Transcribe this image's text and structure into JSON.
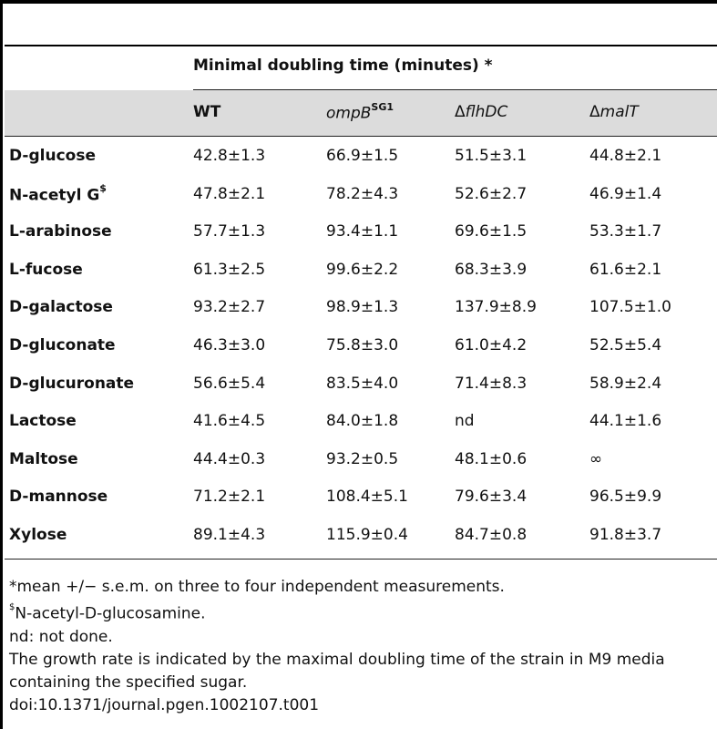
{
  "table": {
    "group_header": "Minimal doubling time (minutes) *",
    "columns": {
      "wt": "WT",
      "ompb_base": "ompB",
      "ompb_sup": "SG1",
      "flhdc_delta": "Δ",
      "flhdc_name": "flhDC",
      "malt_delta": "Δ",
      "malt_name": "malT"
    },
    "rows": [
      {
        "label": "D-glucose",
        "sup": "",
        "wt": "42.8±1.3",
        "ompb": "66.9±1.5",
        "flhdc": "51.5±3.1",
        "malt": "44.8±2.1"
      },
      {
        "label": "N-acetyl G",
        "sup": "$",
        "wt": "47.8±2.1",
        "ompb": "78.2±4.3",
        "flhdc": "52.6±2.7",
        "malt": "46.9±1.4"
      },
      {
        "label": "L-arabinose",
        "sup": "",
        "wt": "57.7±1.3",
        "ompb": "93.4±1.1",
        "flhdc": "69.6±1.5",
        "malt": "53.3±1.7"
      },
      {
        "label": "L-fucose",
        "sup": "",
        "wt": "61.3±2.5",
        "ompb": "99.6±2.2",
        "flhdc": "68.3±3.9",
        "malt": "61.6±2.1"
      },
      {
        "label": "D-galactose",
        "sup": "",
        "wt": "93.2±2.7",
        "ompb": "98.9±1.3",
        "flhdc": "137.9±8.9",
        "malt": "107.5±1.0"
      },
      {
        "label": "D-gluconate",
        "sup": "",
        "wt": "46.3±3.0",
        "ompb": "75.8±3.0",
        "flhdc": "61.0±4.2",
        "malt": "52.5±5.4"
      },
      {
        "label": "D-glucuronate",
        "sup": "",
        "wt": "56.6±5.4",
        "ompb": "83.5±4.0",
        "flhdc": "71.4±8.3",
        "malt": "58.9±2.4"
      },
      {
        "label": "Lactose",
        "sup": "",
        "wt": "41.6±4.5",
        "ompb": "84.0±1.8",
        "flhdc": "nd",
        "malt": "44.1±1.6"
      },
      {
        "label": "Maltose",
        "sup": "",
        "wt": "44.4±0.3",
        "ompb": "93.2±0.5",
        "flhdc": "48.1±0.6",
        "malt": "∞"
      },
      {
        "label": "D-mannose",
        "sup": "",
        "wt": "71.2±2.1",
        "ompb": "108.4±5.1",
        "flhdc": "79.6±3.4",
        "malt": "96.5±9.9"
      },
      {
        "label": "Xylose",
        "sup": "",
        "wt": "89.1±4.3",
        "ompb": "115.9±0.4",
        "flhdc": "84.7±0.8",
        "malt": "91.8±3.7"
      }
    ]
  },
  "notes": {
    "n1": "*mean +/− s.e.m. on three to four independent measurements.",
    "n2_sup": "$",
    "n2": "N-acetyl-D-glucosamine.",
    "n3": "nd: not done.",
    "n4": "The growth rate is indicated by the maximal doubling time of the strain in M9 media containing the specified sugar.",
    "n5": "doi:10.1371/journal.pgen.1002107.t001"
  }
}
